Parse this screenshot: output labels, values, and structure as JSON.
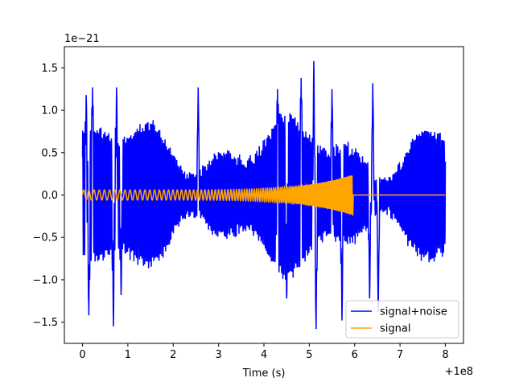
{
  "chart_data": {
    "type": "line",
    "title": "",
    "xlabel": "Time (s)",
    "ylabel": "",
    "x_offset_label": "+1e8",
    "y_scale_label": "1e−21",
    "xlim": [
      -0.4,
      8.4
    ],
    "ylim": [
      -1.75,
      1.75
    ],
    "x_ticks": [
      0,
      1,
      2,
      3,
      4,
      5,
      6,
      7,
      8
    ],
    "x_tick_labels": [
      "0",
      "1",
      "2",
      "3",
      "4",
      "5",
      "6",
      "7",
      "8"
    ],
    "y_ticks": [
      -1.5,
      -1.0,
      -0.5,
      0.0,
      0.5,
      1.0,
      1.5
    ],
    "y_tick_labels": [
      "−1.5",
      "−1.0",
      "−0.5",
      "0.0",
      "0.5",
      "1.0",
      "1.5"
    ],
    "grid": false,
    "legend_position": "lower-right",
    "series": [
      {
        "name": "signal+noise",
        "color": "#0000ff",
        "description_x": [
          0,
          8
        ],
        "amplitude_range": [
          -1.6,
          1.6
        ],
        "peaks": [
          {
            "x": 0.08,
            "y": 1.18
          },
          {
            "x": 0.14,
            "y": -1.42
          },
          {
            "x": 0.22,
            "y": 1.27
          },
          {
            "x": 0.68,
            "y": -1.55
          },
          {
            "x": 0.75,
            "y": 1.27
          },
          {
            "x": 0.85,
            "y": -1.18
          },
          {
            "x": 2.55,
            "y": 1.27
          },
          {
            "x": 4.3,
            "y": 1.25
          },
          {
            "x": 4.5,
            "y": -1.22
          },
          {
            "x": 4.82,
            "y": 1.38
          },
          {
            "x": 5.1,
            "y": 1.58
          },
          {
            "x": 5.15,
            "y": -1.58
          },
          {
            "x": 5.5,
            "y": 1.25
          },
          {
            "x": 5.72,
            "y": -1.48
          },
          {
            "x": 6.4,
            "y": 1.32
          },
          {
            "x": 6.33,
            "y": -1.22
          },
          {
            "x": 6.52,
            "y": -1.38
          }
        ]
      },
      {
        "name": "signal",
        "color": "#ffa500",
        "x_range": [
          0,
          8
        ],
        "chirp_end_x": 5.95,
        "amplitude_start": 0.06,
        "amplitude_end": 0.24,
        "after_merger_value": 0.0
      }
    ]
  }
}
